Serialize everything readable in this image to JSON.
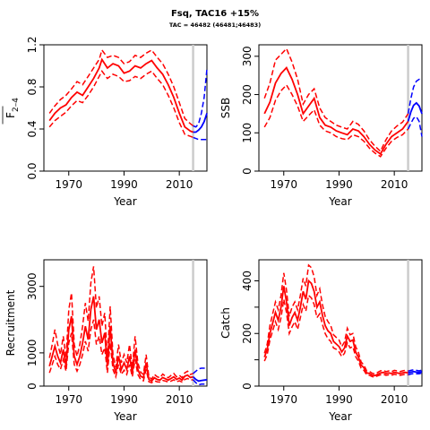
{
  "title": "Fsq, TAC16 +15%",
  "subtitle": "TAC = 46482 (46481;46483)",
  "colors": {
    "history": "#ff0000",
    "projection": "#0000ff",
    "marker": "#cccccc"
  },
  "chart_data": [
    {
      "id": "fbar",
      "type": "line",
      "xlabel": "Year",
      "ylabel_main": "F",
      "ylabel_sub": "2–4",
      "xlim": [
        1961,
        2020
      ],
      "ylim": [
        0,
        1.2
      ],
      "xticks": [
        1970,
        1990,
        2010
      ],
      "yticks": [
        0.0,
        0.4,
        0.8,
        1.2
      ],
      "ytick_labels": [
        "0.0",
        "0.4",
        "0.8",
        "1.2"
      ],
      "marker_year": 2015,
      "hist": {
        "x": [
          1963,
          1965,
          1967,
          1969,
          1971,
          1973,
          1975,
          1977,
          1979,
          1981,
          1982,
          1984,
          1986,
          1988,
          1990,
          1992,
          1994,
          1996,
          1998,
          2000,
          2002,
          2004,
          2006,
          2008,
          2010,
          2012,
          2014,
          2015
        ],
        "mid": [
          0.48,
          0.55,
          0.6,
          0.63,
          0.7,
          0.75,
          0.72,
          0.8,
          0.88,
          0.98,
          1.06,
          0.98,
          1.02,
          1.0,
          0.93,
          0.95,
          1.0,
          0.98,
          1.02,
          1.05,
          0.98,
          0.92,
          0.82,
          0.7,
          0.55,
          0.42,
          0.38,
          0.37
        ],
        "lo": [
          0.42,
          0.48,
          0.52,
          0.56,
          0.62,
          0.67,
          0.65,
          0.72,
          0.8,
          0.9,
          0.95,
          0.88,
          0.92,
          0.9,
          0.85,
          0.86,
          0.9,
          0.88,
          0.92,
          0.95,
          0.88,
          0.82,
          0.72,
          0.6,
          0.46,
          0.35,
          0.33,
          0.32
        ],
        "hi": [
          0.55,
          0.62,
          0.68,
          0.72,
          0.78,
          0.85,
          0.82,
          0.9,
          0.98,
          1.06,
          1.15,
          1.08,
          1.1,
          1.08,
          1.02,
          1.04,
          1.1,
          1.08,
          1.12,
          1.15,
          1.08,
          1.02,
          0.92,
          0.8,
          0.65,
          0.5,
          0.45,
          0.43
        ]
      },
      "proj": {
        "x": [
          2015,
          2016,
          2017,
          2018,
          2019,
          2020
        ],
        "mid": [
          0.37,
          0.37,
          0.39,
          0.42,
          0.47,
          0.55
        ],
        "lo": [
          0.32,
          0.31,
          0.3,
          0.3,
          0.3,
          0.3
        ],
        "hi": [
          0.43,
          0.42,
          0.45,
          0.55,
          0.7,
          0.97
        ]
      }
    },
    {
      "id": "ssb",
      "type": "line",
      "xlabel": "Year",
      "ylabel": "SSB",
      "xlim": [
        1961,
        2020
      ],
      "ylim": [
        0,
        330
      ],
      "xticks": [
        1970,
        1990,
        2010
      ],
      "yticks": [
        0,
        100,
        200,
        300
      ],
      "ytick_labels": [
        "0",
        "100",
        "200",
        "300"
      ],
      "marker_year": 2015,
      "hist": {
        "x": [
          1963,
          1965,
          1967,
          1969,
          1971,
          1973,
          1975,
          1977,
          1979,
          1981,
          1983,
          1985,
          1987,
          1989,
          1991,
          1993,
          1995,
          1997,
          1999,
          2001,
          2003,
          2005,
          2007,
          2009,
          2011,
          2013,
          2015
        ],
        "mid": [
          150,
          180,
          230,
          255,
          270,
          240,
          200,
          150,
          170,
          190,
          140,
          120,
          115,
          105,
          100,
          95,
          110,
          105,
          90,
          70,
          55,
          45,
          70,
          90,
          100,
          110,
          130
        ],
        "lo": [
          115,
          140,
          185,
          210,
          225,
          200,
          170,
          130,
          145,
          160,
          120,
          105,
          100,
          90,
          85,
          82,
          95,
          90,
          78,
          60,
          47,
          38,
          60,
          78,
          88,
          95,
          110
        ],
        "hi": [
          190,
          230,
          290,
          305,
          320,
          285,
          240,
          175,
          200,
          215,
          165,
          140,
          130,
          120,
          115,
          110,
          130,
          122,
          105,
          82,
          65,
          52,
          82,
          105,
          118,
          128,
          150
        ]
      },
      "proj": {
        "x": [
          2015,
          2016,
          2017,
          2018,
          2019,
          2020
        ],
        "mid": [
          130,
          155,
          172,
          178,
          170,
          150
        ],
        "lo": [
          110,
          125,
          138,
          142,
          130,
          90
        ],
        "hi": [
          150,
          190,
          220,
          235,
          240,
          242
        ]
      }
    },
    {
      "id": "recruitment",
      "type": "line",
      "xlabel": "Year",
      "ylabel": "Recruitment",
      "xlim": [
        1961,
        2020
      ],
      "ylim": [
        0,
        3800
      ],
      "xticks": [
        1970,
        1990,
        2010
      ],
      "yticks": [
        0,
        1000,
        3000
      ],
      "ytick_labels": [
        "0",
        "1000",
        "3000"
      ],
      "marker_year": 2015,
      "hist": {
        "x": [
          1963,
          1964,
          1965,
          1966,
          1967,
          1968,
          1969,
          1970,
          1971,
          1972,
          1973,
          1974,
          1975,
          1976,
          1977,
          1978,
          1979,
          1980,
          1981,
          1982,
          1983,
          1984,
          1985,
          1986,
          1987,
          1988,
          1989,
          1990,
          1991,
          1992,
          1993,
          1994,
          1995,
          1996,
          1997,
          1998,
          1999,
          2000,
          2001,
          2002,
          2003,
          2004,
          2005,
          2006,
          2007,
          2008,
          2009,
          2010,
          2011,
          2012,
          2013,
          2014,
          2015
        ],
        "mid": [
          600,
          900,
          1200,
          900,
          700,
          1100,
          600,
          1700,
          2100,
          900,
          650,
          900,
          1300,
          1800,
          1400,
          2300,
          2700,
          1700,
          2000,
          1300,
          1600,
          600,
          1800,
          700,
          400,
          900,
          500,
          700,
          500,
          900,
          400,
          1100,
          500,
          300,
          250,
          700,
          200,
          150,
          250,
          200,
          180,
          260,
          220,
          180,
          230,
          280,
          200,
          240,
          180,
          300,
          330,
          260,
          280
        ],
        "lo": [
          400,
          650,
          900,
          650,
          500,
          800,
          450,
          1300,
          1600,
          650,
          450,
          650,
          950,
          1350,
          1050,
          1700,
          2000,
          1250,
          1500,
          950,
          1150,
          400,
          1300,
          500,
          280,
          650,
          350,
          480,
          350,
          650,
          280,
          800,
          350,
          200,
          160,
          500,
          130,
          100,
          160,
          130,
          120,
          170,
          150,
          120,
          150,
          190,
          130,
          160,
          120,
          200,
          230,
          180,
          190
        ],
        "hi": [
          850,
          1250,
          1700,
          1250,
          950,
          1500,
          850,
          2300,
          2800,
          1250,
          900,
          1250,
          1800,
          2500,
          1950,
          3100,
          3600,
          2350,
          2700,
          1800,
          2200,
          850,
          2400,
          950,
          560,
          1250,
          700,
          950,
          700,
          1250,
          560,
          1500,
          700,
          420,
          350,
          950,
          280,
          210,
          350,
          280,
          250,
          360,
          300,
          250,
          320,
          380,
          280,
          330,
          250,
          400,
          450,
          350,
          380
        ]
      },
      "proj": {
        "x": [
          2015,
          2016,
          2017,
          2018,
          2019,
          2020
        ],
        "mid": [
          280,
          200,
          150,
          170,
          180,
          190
        ],
        "lo": [
          190,
          100,
          40,
          60,
          60,
          60
        ],
        "hi": [
          380,
          450,
          520,
          540,
          540,
          540
        ]
      }
    },
    {
      "id": "catch",
      "type": "line",
      "xlabel": "Year",
      "ylabel": "Catch",
      "xlim": [
        1961,
        2020
      ],
      "ylim": [
        0,
        480
      ],
      "xticks": [
        1970,
        1990,
        2010
      ],
      "yticks": [
        0,
        100,
        200,
        300,
        400
      ],
      "ytick_labels": [
        "0",
        "",
        "200",
        "",
        "400"
      ],
      "marker_year": 2015,
      "hist": {
        "x": [
          1963,
          1964,
          1965,
          1966,
          1967,
          1968,
          1969,
          1970,
          1971,
          1972,
          1973,
          1974,
          1975,
          1976,
          1977,
          1978,
          1979,
          1980,
          1981,
          1982,
          1983,
          1984,
          1985,
          1986,
          1987,
          1988,
          1989,
          1990,
          1991,
          1992,
          1993,
          1994,
          1995,
          1996,
          1997,
          1998,
          1999,
          2000,
          2001,
          2002,
          2003,
          2004,
          2005,
          2006,
          2007,
          2008,
          2009,
          2010,
          2011,
          2012,
          2013,
          2014,
          2015
        ],
        "mid": [
          110,
          140,
          200,
          240,
          280,
          250,
          300,
          380,
          320,
          230,
          260,
          280,
          250,
          300,
          360,
          330,
          400,
          390,
          360,
          300,
          320,
          270,
          230,
          210,
          200,
          170,
          160,
          150,
          130,
          145,
          190,
          170,
          175,
          130,
          110,
          80,
          70,
          50,
          48,
          42,
          40,
          45,
          50,
          52,
          48,
          50,
          48,
          52,
          50,
          48,
          50,
          52,
          50
        ],
        "lo": [
          95,
          120,
          175,
          210,
          245,
          215,
          260,
          330,
          280,
          200,
          225,
          245,
          215,
          260,
          310,
          285,
          345,
          335,
          310,
          260,
          275,
          235,
          200,
          180,
          170,
          145,
          140,
          130,
          112,
          125,
          165,
          145,
          150,
          112,
          95,
          68,
          60,
          43,
          41,
          36,
          34,
          39,
          43,
          45,
          41,
          43,
          41,
          45,
          43,
          41,
          43,
          45,
          43
        ],
        "hi": [
          125,
          160,
          230,
          275,
          320,
          290,
          345,
          430,
          365,
          265,
          300,
          320,
          290,
          345,
          410,
          380,
          460,
          450,
          415,
          345,
          370,
          310,
          265,
          245,
          230,
          195,
          185,
          175,
          150,
          168,
          220,
          195,
          200,
          150,
          128,
          92,
          80,
          58,
          56,
          49,
          46,
          52,
          58,
          60,
          55,
          58,
          55,
          60,
          58,
          55,
          58,
          60,
          58
        ]
      },
      "proj": {
        "x": [
          2015,
          2016,
          2017,
          2018,
          2019,
          2020
        ],
        "mid": [
          50,
          53,
          55,
          53,
          52,
          55
        ],
        "lo": [
          43,
          46,
          48,
          47,
          47,
          50
        ],
        "hi": [
          57,
          60,
          62,
          60,
          58,
          61
        ]
      }
    }
  ]
}
